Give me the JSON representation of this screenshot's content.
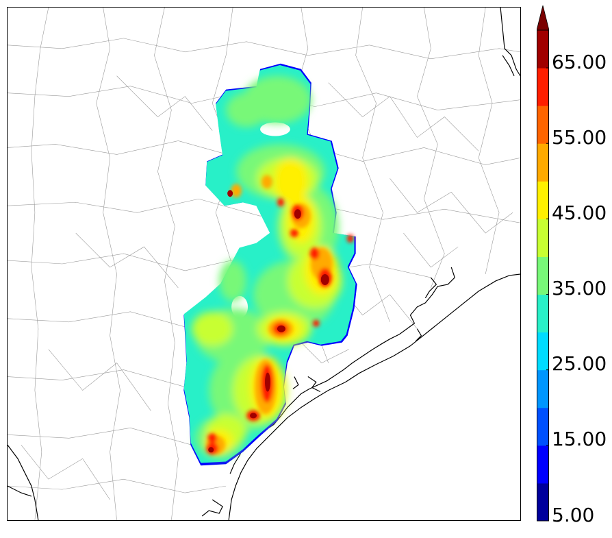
{
  "colorbar": {
    "labels": [
      "65.00",
      "55.00",
      "45.00",
      "35.00",
      "25.00",
      "15.00",
      "5.00"
    ],
    "levels": [
      5,
      10,
      15,
      20,
      25,
      30,
      35,
      40,
      45,
      50,
      55,
      60,
      65,
      70
    ],
    "colors": [
      "#00009c",
      "#0000ff",
      "#0050ff",
      "#0096ff",
      "#00dcff",
      "#28f0c8",
      "#78f878",
      "#c8ff32",
      "#fff000",
      "#ffaa00",
      "#ff6400",
      "#ff1e00",
      "#a00000"
    ],
    "extend_color": "#7a0000"
  },
  "colors": {
    "county_lines": "#999999",
    "coastline": "#000000",
    "field_edge": "#0000ff"
  }
}
